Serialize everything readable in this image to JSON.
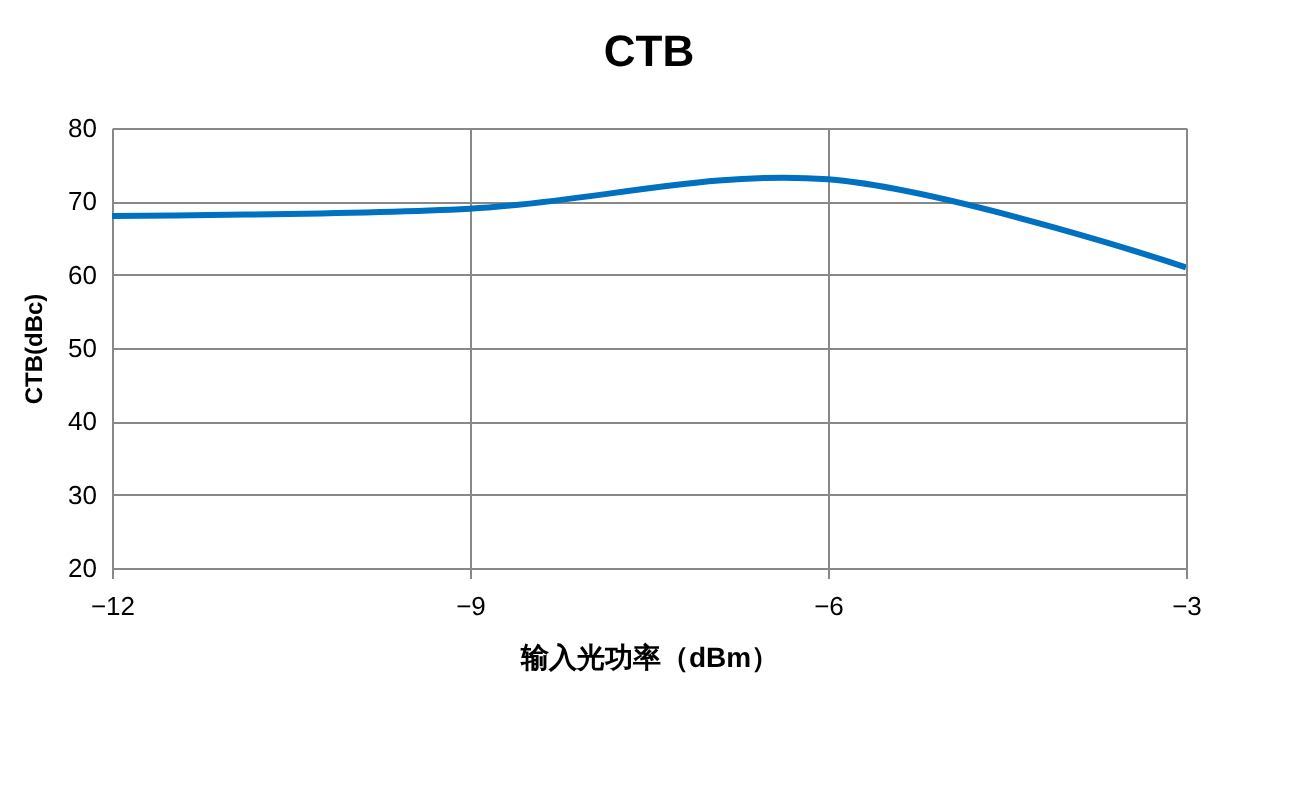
{
  "chart_data": {
    "type": "line",
    "title": "CTB",
    "xlabel": "输入光功率（dBm）",
    "ylabel": "CTB(dBc)",
    "x": [
      -12,
      -9,
      -6,
      -3
    ],
    "series": [
      {
        "color": "#0070c0",
        "values": [
          68,
          69,
          73,
          61
        ]
      }
    ],
    "xlim": [
      -12,
      -3
    ],
    "xticks": [
      -12,
      -9,
      -6,
      -3
    ],
    "ylim": [
      20,
      80
    ],
    "yticks": [
      20,
      30,
      40,
      50,
      60,
      70,
      80
    ],
    "grid": true,
    "legend": false,
    "marker": "none",
    "line_style": "solid"
  }
}
